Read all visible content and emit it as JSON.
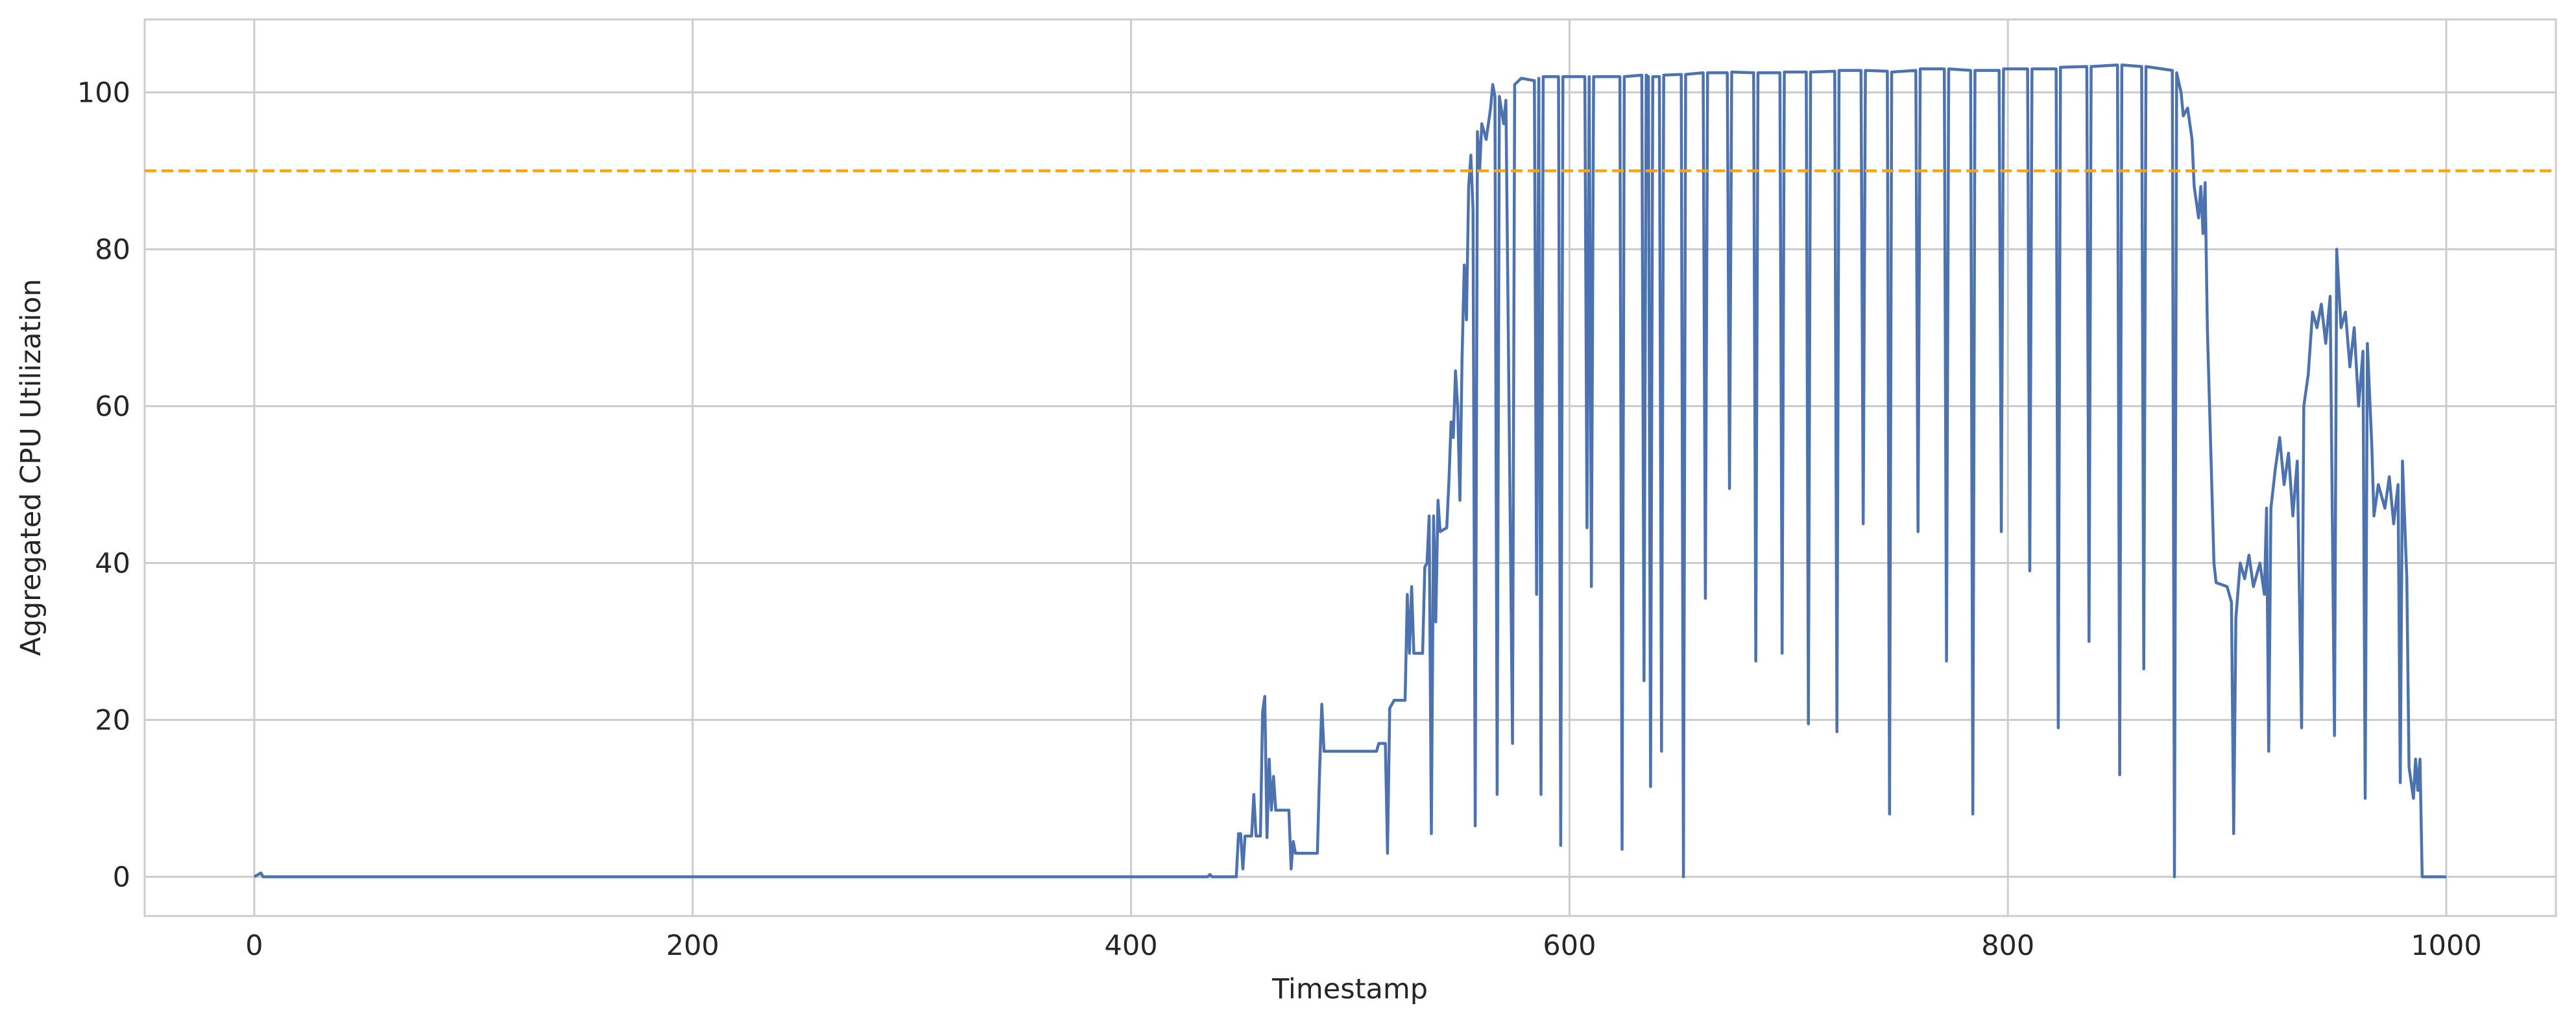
{
  "chart_data": {
    "type": "line",
    "x_label": "Timestamp",
    "y_label": "Aggregated CPU Utilization",
    "x": [
      0,
      3,
      4,
      435,
      436,
      437,
      448,
      449,
      450,
      451,
      452,
      455,
      456,
      457,
      459,
      460,
      461,
      462,
      463,
      464,
      465,
      466,
      472,
      473,
      474,
      475,
      485,
      486,
      487,
      488,
      512,
      513,
      516,
      517,
      518,
      520,
      525,
      526,
      527,
      528,
      529,
      533,
      534,
      535,
      536,
      537,
      538,
      539,
      540,
      541,
      544,
      545,
      546,
      547,
      548,
      549,
      550,
      551,
      552,
      553,
      554,
      555,
      556,
      557,
      558,
      559,
      560,
      562,
      564,
      565,
      566,
      567,
      568,
      570,
      571,
      574,
      575,
      578,
      584,
      585,
      586,
      587,
      588,
      595,
      596,
      597,
      607,
      608,
      609,
      610,
      611,
      623,
      624,
      625,
      633,
      634,
      635,
      636,
      637,
      638,
      641,
      642,
      643,
      651,
      652,
      653,
      661,
      662,
      663,
      672,
      673,
      674,
      684,
      685,
      686,
      696,
      697,
      698,
      708,
      709,
      710,
      721,
      722,
      723,
      733,
      734,
      735,
      745,
      746,
      747,
      758,
      759,
      760,
      771,
      772,
      773,
      783,
      784,
      785,
      796,
      797,
      798,
      809,
      810,
      811,
      822,
      823,
      824,
      836,
      837,
      838,
      850,
      851,
      852,
      861,
      862,
      863,
      875,
      876,
      877,
      879,
      880,
      882,
      884,
      885,
      887,
      888,
      889,
      890,
      891,
      892,
      893,
      894,
      895,
      900,
      902,
      903,
      904,
      906,
      908,
      910,
      912,
      915,
      917,
      918,
      919,
      920,
      922,
      924,
      926,
      928,
      930,
      932,
      934,
      935,
      937,
      939,
      941,
      943,
      945,
      947,
      949,
      950,
      952,
      954,
      956,
      958,
      960,
      962,
      963,
      964,
      966,
      967,
      969,
      972,
      974,
      976,
      978,
      979,
      980,
      982,
      983,
      985,
      986,
      987,
      988,
      989,
      1000
    ],
    "values": [
      0,
      0.5,
      0,
      0,
      0.3,
      0,
      0,
      5.5,
      5.5,
      1,
      5.2,
      5.2,
      10.5,
      5.2,
      5.2,
      21,
      23,
      5,
      15,
      8.5,
      12.8,
      8.5,
      8.5,
      1,
      4.5,
      3,
      3,
      13.5,
      22,
      16,
      16,
      17,
      17,
      3,
      21.5,
      22.5,
      22.5,
      36,
      28.5,
      37,
      28.5,
      28.5,
      39.5,
      40,
      46,
      5.5,
      46,
      32.5,
      48,
      44,
      44.5,
      50.5,
      58,
      56,
      64.5,
      59.8,
      48,
      66,
      78,
      71,
      88,
      92,
      85,
      6.5,
      95,
      90,
      96,
      94,
      98,
      101,
      99.5,
      10.5,
      99.5,
      96,
      99,
      17,
      101,
      101.8,
      101.5,
      36,
      101.8,
      10.5,
      102,
      102,
      4,
      102,
      102,
      44.5,
      102,
      37,
      102,
      102,
      3.5,
      102,
      102.2,
      25,
      102.2,
      102,
      11.5,
      102,
      102,
      16,
      102.2,
      102.3,
      0,
      102.3,
      102.5,
      35.5,
      102.5,
      102.5,
      49.5,
      102.6,
      102.5,
      27.5,
      102.5,
      102.5,
      28.5,
      102.6,
      102.6,
      19.5,
      102.6,
      102.7,
      18.5,
      102.8,
      102.8,
      45,
      102.8,
      102.7,
      8,
      102.6,
      102.8,
      44,
      103,
      103,
      27.5,
      103,
      102.8,
      8,
      102.8,
      102.8,
      44,
      103,
      103,
      39,
      103,
      103,
      19,
      103.2,
      103.3,
      30,
      103.3,
      103.5,
      13,
      103.5,
      103.3,
      26.5,
      103.3,
      102.8,
      0,
      102.5,
      100,
      97,
      98,
      94,
      88,
      84,
      88,
      82,
      88.5,
      70,
      60,
      50,
      40,
      37.5,
      37,
      35,
      5.5,
      33,
      40,
      38,
      41,
      37,
      40,
      36,
      47,
      16,
      47,
      52,
      56,
      50,
      54,
      46,
      53,
      19,
      60,
      64,
      72,
      70,
      73,
      68,
      74,
      18,
      80,
      70,
      72,
      65,
      70,
      60,
      67,
      10,
      68,
      55,
      46,
      50,
      47,
      51,
      45,
      50,
      12,
      53,
      38,
      14,
      10,
      15,
      11,
      15,
      0,
      0
    ],
    "color": "#4c72b0",
    "reference_line": 90,
    "reference_color": "#ffa500",
    "xlim": [
      -50,
      1050
    ],
    "ylim": [
      -5,
      109.3
    ],
    "xticks": [
      0,
      200,
      400,
      600,
      800,
      1000
    ],
    "yticks": [
      0,
      20,
      40,
      60,
      80,
      100
    ],
    "grid": true
  }
}
